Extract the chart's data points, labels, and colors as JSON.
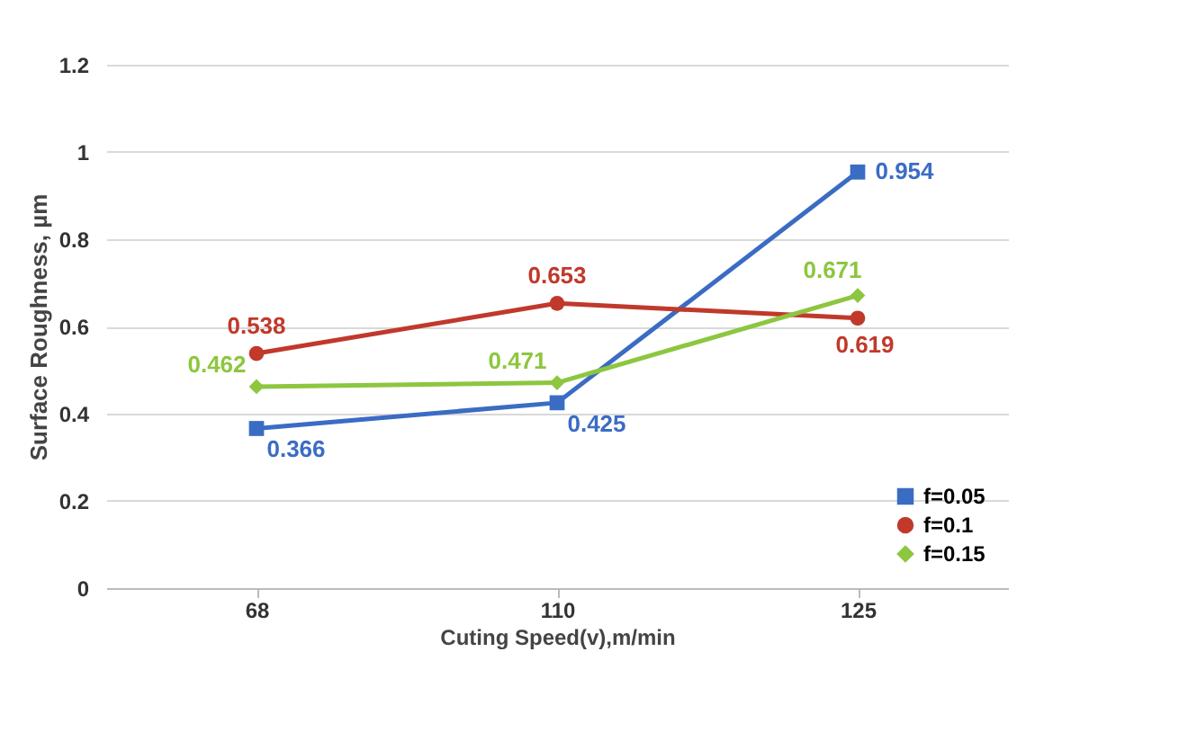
{
  "chart_data": {
    "type": "line",
    "xlabel": "Cuting Speed(v),m/min",
    "ylabel": "Surface  Roughness, µm",
    "categories": [
      "68",
      "110",
      "125"
    ],
    "series": [
      {
        "name": "f=0.05",
        "color": "#3b6cc4",
        "marker": "square",
        "values": [
          0.366,
          0.425,
          0.954
        ]
      },
      {
        "name": "f=0.1",
        "color": "#c0392b",
        "marker": "circle",
        "values": [
          0.538,
          0.653,
          0.619
        ]
      },
      {
        "name": "f=0.15",
        "color": "#8dc63f",
        "marker": "diamond",
        "values": [
          0.462,
          0.471,
          0.671
        ]
      }
    ],
    "ylim": [
      0,
      1.2
    ],
    "yticks": [
      0,
      0.2,
      0.4,
      0.6,
      0.8,
      1,
      1.2
    ],
    "grid": "y",
    "legend": "bottom right",
    "data_labels": true,
    "line_style": "solid"
  }
}
